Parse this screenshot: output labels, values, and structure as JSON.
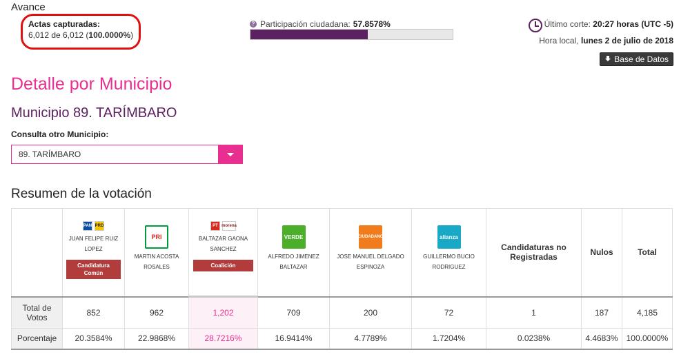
{
  "header": {
    "avance_title": "Avance",
    "actas_label": "Actas capturadas:",
    "actas_count": "6,012 de 6,012 (",
    "actas_percent": "100.0000%",
    "actas_close": ")",
    "participacion_label": "Participación ciudadana:",
    "participacion_value": "57.8578%",
    "participacion_fraction": 0.578578,
    "corte_label": "Último corte:",
    "corte_value": "20:27 horas (UTC -5)",
    "hora_label": "Hora local,",
    "hora_value": "lunes 2 de julio de 2018",
    "db_button": "Base de Datos"
  },
  "detalle": {
    "title": "Detalle por Municipio",
    "municipio": "Municipio 89. TARÍMBARO",
    "consulta_label": "Consulta otro Municipio:",
    "select_value": "89. TARÍMBARO"
  },
  "resumen": {
    "title": "Resumen de la votación",
    "columns": [
      {
        "name_line1": "JUAN FELIPE RUIZ",
        "name_line2": "LOPEZ",
        "logos": [
          "PAN",
          "PRD"
        ],
        "badge": "Candidatura Común",
        "logo_colors": [
          "#0a4ea2",
          "#f5c400"
        ]
      },
      {
        "name_line1": "MARTIN ACOSTA",
        "name_line2": "ROSALES",
        "logos": [
          "PRI"
        ],
        "logo_colors": [
          "#009b3a"
        ]
      },
      {
        "name_line1": "BALTAZAR GAONA",
        "name_line2": "SANCHEZ",
        "logos": [
          "PT",
          "morena"
        ],
        "badge": "Coalición",
        "logo_colors": [
          "#d52b1e",
          "#ffffff"
        ]
      },
      {
        "name_line1": "ALFREDO JIMENEZ",
        "name_line2": "BALTAZAR",
        "logos": [
          "VERDE"
        ],
        "logo_colors": [
          "#4caf2a"
        ]
      },
      {
        "name_line1": "JOSE MANUEL DELGADO",
        "name_line2": "ESPINOZA",
        "logos": [
          "CIUDADANO"
        ],
        "logo_colors": [
          "#f07c1d"
        ]
      },
      {
        "name_line1": "GUILLERMO BUCIO",
        "name_line2": "RODRIGUEZ",
        "logos": [
          "alianza"
        ],
        "logo_colors": [
          "#19a9c7"
        ]
      }
    ],
    "no_registradas": "Candidaturas no Registradas",
    "nulos": "Nulos",
    "total": "Total",
    "row_votos_label": "Total de Votos",
    "votos": [
      "852",
      "962",
      "1,202",
      "709",
      "200",
      "72",
      "1",
      "187",
      "4,185"
    ],
    "row_pct_label": "Porcentaje",
    "porcentajes": [
      "20.3584%",
      "22.9868%",
      "28.7216%",
      "16.9414%",
      "4.7789%",
      "1.7204%",
      "0.0238%",
      "4.4683%",
      "100.0000%"
    ]
  },
  "colors": {
    "accent_pink": "#e82f8f",
    "accent_purple": "#5c2160",
    "badge_red": "#b23b3b"
  }
}
